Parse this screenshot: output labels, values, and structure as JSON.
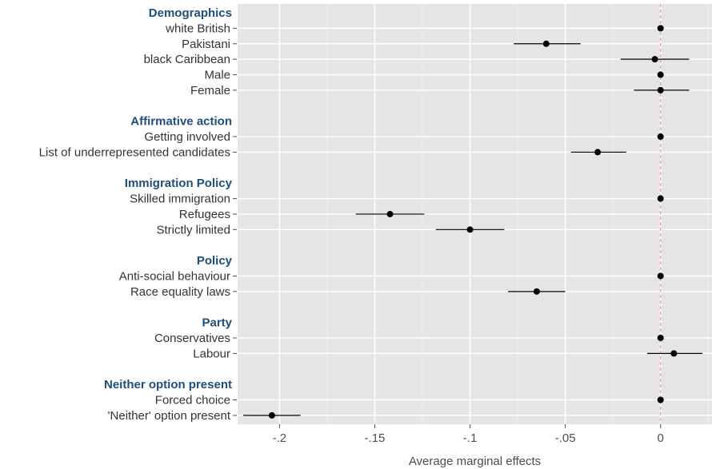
{
  "chart_data": {
    "type": "scatter",
    "subtype": "coefficient-plot-with-error-bars",
    "title": "",
    "xlabel": "Average marginal effects",
    "ylabel": "",
    "xlim": [
      -0.222,
      0.027
    ],
    "x_ticks": [
      -0.2,
      -0.15,
      -0.1,
      -0.05,
      0
    ],
    "x_tick_labels": [
      "-.2",
      "-.15",
      "-.1",
      "-.05",
      "0"
    ],
    "reference_line": {
      "x": 0,
      "color": "#e0859a",
      "style": "dashed"
    },
    "grid": true,
    "background": "#e5e5e5",
    "header_color": "#1f4e79",
    "rows": [
      {
        "label": "Demographics",
        "header": true
      },
      {
        "label": "white British",
        "estimate": 0.0,
        "lower": 0.0,
        "upper": 0.0
      },
      {
        "label": "Pakistani",
        "estimate": -0.06,
        "lower": -0.077,
        "upper": -0.042
      },
      {
        "label": "black Caribbean",
        "estimate": -0.003,
        "lower": -0.021,
        "upper": 0.015
      },
      {
        "label": "Male",
        "estimate": 0.0,
        "lower": 0.0,
        "upper": 0.0
      },
      {
        "label": "Female",
        "estimate": 0.0,
        "lower": -0.014,
        "upper": 0.015
      },
      {
        "label": "",
        "spacer": true
      },
      {
        "label": "Affirmative action",
        "header": true
      },
      {
        "label": "Getting involved",
        "estimate": 0.0,
        "lower": 0.0,
        "upper": 0.0
      },
      {
        "label": "List of underrepresented candidates",
        "estimate": -0.033,
        "lower": -0.047,
        "upper": -0.018
      },
      {
        "label": "",
        "spacer": true
      },
      {
        "label": "Immigration Policy",
        "header": true
      },
      {
        "label": "Skilled immigration",
        "estimate": 0.0,
        "lower": 0.0,
        "upper": 0.0
      },
      {
        "label": "Refugees",
        "estimate": -0.142,
        "lower": -0.16,
        "upper": -0.124
      },
      {
        "label": "Strictly limited",
        "estimate": -0.1,
        "lower": -0.118,
        "upper": -0.082
      },
      {
        "label": "",
        "spacer": true
      },
      {
        "label": "Policy",
        "header": true
      },
      {
        "label": "Anti-social behaviour",
        "estimate": 0.0,
        "lower": 0.0,
        "upper": 0.0
      },
      {
        "label": "Race equality laws",
        "estimate": -0.065,
        "lower": -0.08,
        "upper": -0.05
      },
      {
        "label": "",
        "spacer": true
      },
      {
        "label": "Party",
        "header": true
      },
      {
        "label": "Conservatives",
        "estimate": 0.0,
        "lower": 0.0,
        "upper": 0.0
      },
      {
        "label": "Labour",
        "estimate": 0.007,
        "lower": -0.007,
        "upper": 0.022
      },
      {
        "label": "",
        "spacer": true
      },
      {
        "label": "Neither option present",
        "header": true
      },
      {
        "label": "Forced choice",
        "estimate": 0.0,
        "lower": 0.0,
        "upper": 0.0
      },
      {
        "label": "'Neither' option present",
        "estimate": -0.204,
        "lower": -0.219,
        "upper": -0.189
      }
    ]
  }
}
